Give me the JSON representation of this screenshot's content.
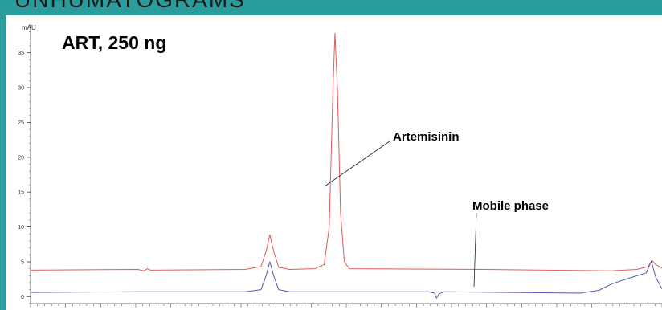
{
  "page": {
    "header_partial": "UNHUMATOGRAMS"
  },
  "chart_data": {
    "type": "line",
    "title": "ART, 250 ng",
    "ylabel_unit": "mAU",
    "ylim": [
      -1,
      39
    ],
    "yticks": [
      0,
      5,
      10,
      15,
      20,
      25,
      30,
      35
    ],
    "xlim": [
      0,
      100
    ],
    "grid": false,
    "series": [
      {
        "color": "#e35b5b",
        "baseline": 3.8,
        "points": [
          [
            0,
            3.8
          ],
          [
            17,
            3.9
          ],
          [
            18,
            3.7
          ],
          [
            18.5,
            4.0
          ],
          [
            19,
            3.8
          ],
          [
            34,
            3.9
          ],
          [
            36.5,
            4.3
          ],
          [
            37.3,
            6.5
          ],
          [
            37.9,
            8.9
          ],
          [
            38.5,
            6.5
          ],
          [
            39.3,
            4.2
          ],
          [
            41,
            3.9
          ],
          [
            45,
            4.0
          ],
          [
            46.5,
            4.6
          ],
          [
            47.3,
            10
          ],
          [
            47.9,
            30
          ],
          [
            48.2,
            37.8
          ],
          [
            48.6,
            30
          ],
          [
            49.1,
            12
          ],
          [
            49.7,
            5
          ],
          [
            50.5,
            4.0
          ],
          [
            72,
            3.9
          ],
          [
            92,
            3.7
          ],
          [
            96,
            3.9
          ],
          [
            97.8,
            4.3
          ],
          [
            98.4,
            5.2
          ],
          [
            99,
            4.6
          ],
          [
            100,
            4.1
          ]
        ]
      },
      {
        "color": "#5a58a8",
        "baseline": 0.6,
        "points": [
          [
            0,
            0.6
          ],
          [
            17,
            0.7
          ],
          [
            34,
            0.7
          ],
          [
            36.5,
            1.0
          ],
          [
            37.3,
            3.0
          ],
          [
            37.9,
            5.0
          ],
          [
            38.5,
            3.0
          ],
          [
            39.3,
            1.0
          ],
          [
            41,
            0.7
          ],
          [
            63,
            0.7
          ],
          [
            64,
            0.5
          ],
          [
            64.3,
            -0.2
          ],
          [
            64.7,
            0.4
          ],
          [
            65.5,
            0.7
          ],
          [
            87,
            0.5
          ],
          [
            90,
            0.9
          ],
          [
            92,
            1.8
          ],
          [
            95,
            2.7
          ],
          [
            97.5,
            3.4
          ],
          [
            98.3,
            5.1
          ],
          [
            99,
            2.8
          ],
          [
            100,
            1.1
          ]
        ]
      }
    ],
    "annotations": [
      {
        "text": "Artemisinin"
      },
      {
        "text": "Mobile phase"
      }
    ]
  }
}
